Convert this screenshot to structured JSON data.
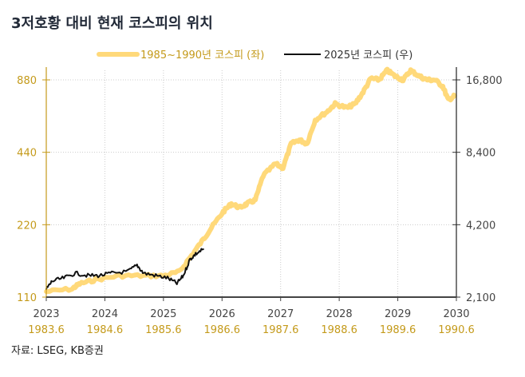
{
  "title": "3저호황 대비 현재 코스피의 위치",
  "source": "자료: LSEG, KB증권",
  "colors": {
    "series_old": "#FFD97A",
    "series_new": "#111111",
    "left_axis": "#C49A1A",
    "right_axis": "#444444"
  },
  "chart_data": {
    "type": "line",
    "title": "3저호황 대비 현재 코스피의 위치",
    "legend_position": "top-center",
    "x_axis": {
      "range": [
        2023,
        2030
      ],
      "ticks": [
        "2023",
        "2024",
        "2025",
        "2026",
        "2027",
        "2028",
        "2029",
        "2030"
      ],
      "secondary_ticks": [
        "1983.6",
        "1984.6",
        "1985.6",
        "1986.6",
        "1987.6",
        "1988.6",
        "1989.6",
        "1990.6"
      ],
      "grid": true
    },
    "y_left": {
      "scale": "log",
      "range": [
        110,
        880
      ],
      "ticks": [
        "110",
        "220",
        "440",
        "880"
      ],
      "tick_values": [
        110,
        220,
        440,
        880
      ]
    },
    "y_right": {
      "scale": "log",
      "range": [
        2100,
        16800
      ],
      "ticks": [
        "2,100",
        "4,200",
        "8,400",
        "16,800"
      ],
      "tick_values": [
        2100,
        4200,
        8400,
        16800
      ]
    },
    "series": [
      {
        "name": "1985~1990년 코스피 (좌)",
        "axis": "left",
        "x": [
          2023.0,
          2023.44,
          2023.57,
          2023.84,
          2024.25,
          2024.66,
          2025.0,
          2025.27,
          2025.48,
          2025.68,
          2025.82,
          2026.02,
          2026.16,
          2026.3,
          2026.43,
          2026.57,
          2026.7,
          2026.91,
          2027.04,
          2027.18,
          2027.32,
          2027.45,
          2027.59,
          2027.79,
          2027.93,
          2028.13,
          2028.27,
          2028.41,
          2028.54,
          2028.68,
          2028.82,
          2028.95,
          2029.09,
          2029.22,
          2029.36,
          2029.5,
          2029.63,
          2029.77,
          2029.86,
          2029.97
        ],
        "values": [
          116,
          119,
          125,
          130,
          135,
          135,
          135,
          140,
          164,
          191,
          214,
          249,
          269,
          259,
          269,
          279,
          351,
          394,
          379,
          477,
          496,
          477,
          600,
          648,
          699,
          673,
          699,
          784,
          893,
          880,
          964,
          913,
          880,
          964,
          913,
          880,
          880,
          827,
          726,
          755
        ]
      },
      {
        "name": "2025년 코스피 (우)",
        "axis": "right",
        "x": [
          2023.0,
          2023.1,
          2023.3,
          2023.5,
          2023.71,
          2023.91,
          2024.12,
          2024.39,
          2024.55,
          2024.66,
          2024.87,
          2025.07,
          2025.23,
          2025.34,
          2025.45,
          2025.55,
          2025.68
        ],
        "values": [
          2266,
          2447,
          2522,
          2641,
          2581,
          2581,
          2641,
          2682,
          2851,
          2641,
          2581,
          2522,
          2393,
          2581,
          3007,
          3173,
          3321
        ]
      }
    ]
  }
}
